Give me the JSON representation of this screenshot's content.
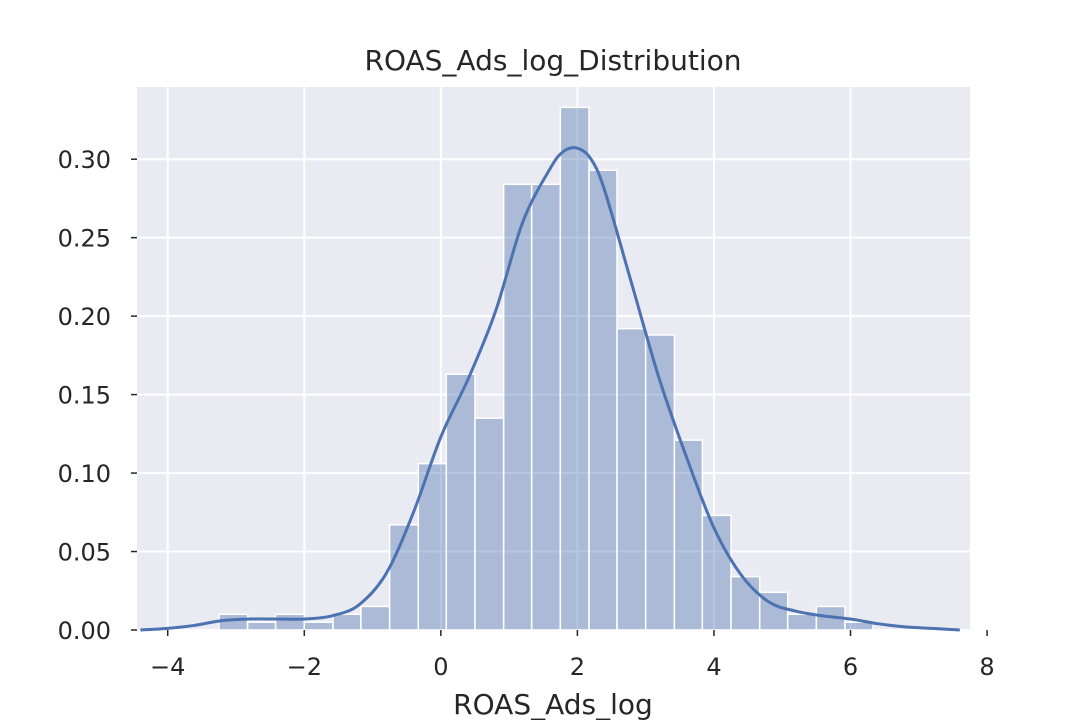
{
  "chart_data": {
    "type": "bar",
    "subtype": "histogram-with-kde",
    "title": "ROAS_Ads_log_Distribution",
    "xlabel": "ROAS_Ads_log",
    "ylabel": "",
    "xlim": [
      -4.45,
      7.75
    ],
    "ylim": [
      0,
      0.346
    ],
    "grid": true,
    "x_ticks": [
      -4,
      -2,
      0,
      2,
      4,
      6,
      8
    ],
    "x_tick_labels": [
      "−4",
      "−2",
      "0",
      "2",
      "4",
      "6",
      "8"
    ],
    "y_ticks": [
      0.0,
      0.05,
      0.1,
      0.15,
      0.2,
      0.25,
      0.3
    ],
    "y_tick_labels": [
      "0.00",
      "0.05",
      "0.10",
      "0.15",
      "0.20",
      "0.25",
      "0.30"
    ],
    "histogram": {
      "bin_edges": [
        -3.25,
        -2.83,
        -2.42,
        -2.0,
        -1.58,
        -1.17,
        -0.75,
        -0.33,
        0.08,
        0.5,
        0.92,
        1.33,
        1.75,
        2.17,
        2.58,
        3.0,
        3.42,
        3.83,
        4.25,
        4.67,
        5.08,
        5.5,
        5.92,
        6.33
      ],
      "densities": [
        0.01,
        0.005,
        0.01,
        0.005,
        0.01,
        0.015,
        0.067,
        0.106,
        0.163,
        0.135,
        0.284,
        0.284,
        0.333,
        0.293,
        0.192,
        0.188,
        0.121,
        0.073,
        0.034,
        0.024,
        0.01,
        0.015,
        0.005
      ],
      "color": "#4c72b0",
      "alpha": 0.4
    },
    "kde": {
      "color": "#4c72b0",
      "x": [
        -4.4,
        -4.0,
        -3.6,
        -3.2,
        -2.8,
        -2.4,
        -2.0,
        -1.6,
        -1.2,
        -0.8,
        -0.4,
        0.0,
        0.4,
        0.8,
        1.2,
        1.6,
        1.8,
        2.0,
        2.2,
        2.4,
        2.8,
        3.2,
        3.6,
        4.0,
        4.4,
        4.8,
        5.2,
        5.6,
        6.0,
        6.4,
        6.8,
        7.2,
        7.6
      ],
      "y": [
        0.0,
        0.001,
        0.003,
        0.006,
        0.007,
        0.007,
        0.007,
        0.009,
        0.016,
        0.036,
        0.075,
        0.123,
        0.16,
        0.203,
        0.26,
        0.294,
        0.305,
        0.307,
        0.3,
        0.28,
        0.22,
        0.16,
        0.11,
        0.065,
        0.035,
        0.018,
        0.012,
        0.009,
        0.007,
        0.004,
        0.002,
        0.001,
        0.0
      ]
    },
    "background_color": "#eaeaf2",
    "grid_color": "#ffffff"
  }
}
